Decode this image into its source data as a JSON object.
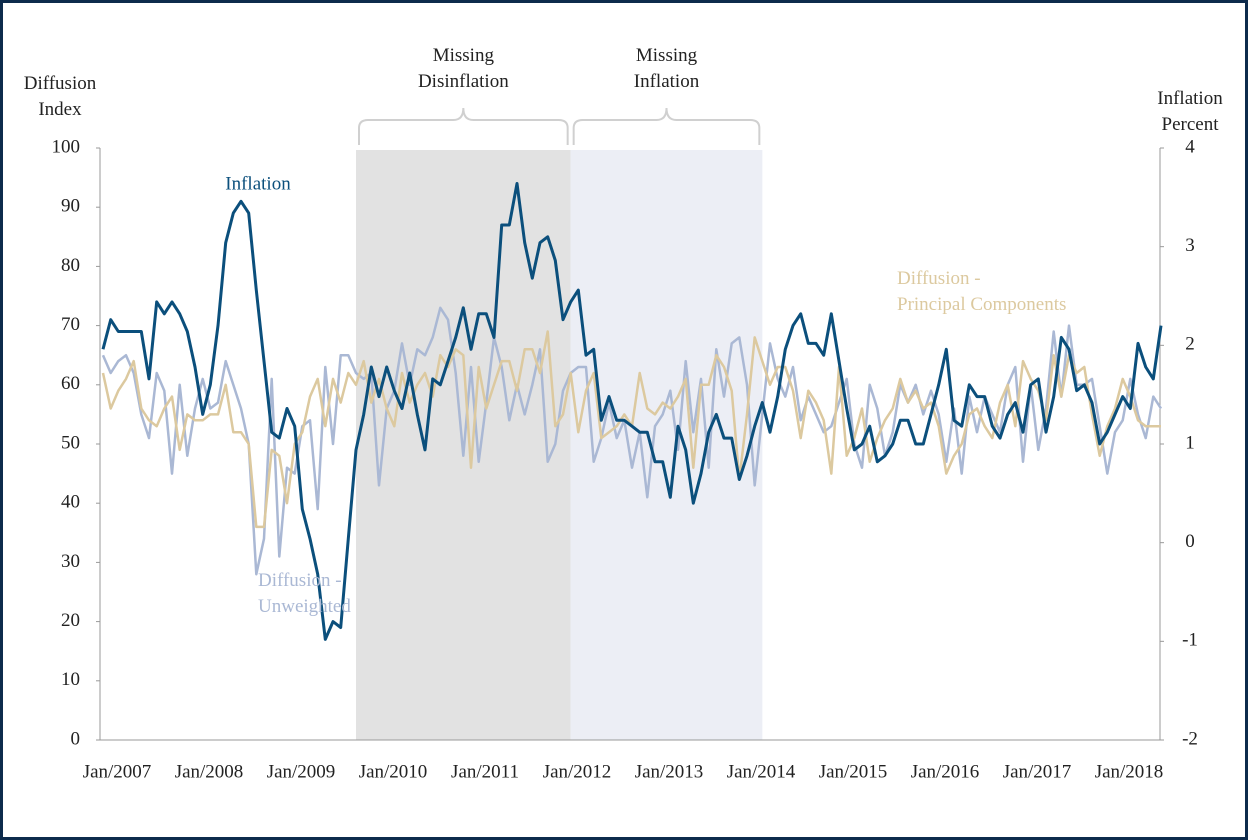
{
  "chart_data": {
    "type": "line",
    "y_label": "Diffusion Index",
    "y2_label": "Inflation Percent",
    "ylim": [
      0,
      100
    ],
    "yticks": [
      0,
      10,
      20,
      30,
      40,
      50,
      60,
      70,
      80,
      90,
      100
    ],
    "y2lim": [
      -2,
      4
    ],
    "y2ticks": [
      -2,
      -1,
      0,
      1,
      2,
      3,
      4
    ],
    "spans": [
      {
        "label": "Missing Disinflation",
        "start": 33,
        "end": 61,
        "color": "#e2e2e2"
      },
      {
        "label": "Missing Inflation",
        "start": 61,
        "end": 86,
        "color": "#eceef5"
      }
    ],
    "categories": [
      "Jan/2007",
      null,
      null,
      null,
      null,
      null,
      null,
      null,
      null,
      null,
      null,
      null,
      "Jan/2008",
      null,
      null,
      null,
      null,
      null,
      null,
      null,
      null,
      null,
      null,
      null,
      "Jan/2009",
      null,
      null,
      null,
      null,
      null,
      null,
      null,
      null,
      null,
      null,
      null,
      "Jan/2010",
      null,
      null,
      null,
      null,
      null,
      null,
      null,
      null,
      null,
      null,
      null,
      "Jan/2011",
      null,
      null,
      null,
      null,
      null,
      null,
      null,
      null,
      null,
      null,
      null,
      "Jan/2012",
      null,
      null,
      null,
      null,
      null,
      null,
      null,
      null,
      null,
      null,
      null,
      "Jan/2013",
      null,
      null,
      null,
      null,
      null,
      null,
      null,
      null,
      null,
      null,
      null,
      "Jan/2014",
      null,
      null,
      null,
      null,
      null,
      null,
      null,
      null,
      null,
      null,
      null,
      "Jan/2015",
      null,
      null,
      null,
      null,
      null,
      null,
      null,
      null,
      null,
      null,
      null,
      "Jan/2016",
      null,
      null,
      null,
      null,
      null,
      null,
      null,
      null,
      null,
      null,
      null,
      "Jan/2017",
      null,
      null,
      null,
      null,
      null,
      null,
      null,
      null,
      null,
      null,
      null,
      "Jan/2018",
      null,
      null,
      null,
      null,
      null,
      null
    ],
    "series": [
      {
        "name": "Diffusion - Unweighted",
        "color": "#aab8d4",
        "values": [
          65,
          62,
          64,
          65,
          62,
          55,
          51,
          62,
          59,
          45,
          60,
          48,
          56,
          61,
          56,
          57,
          64,
          60,
          56,
          50,
          28,
          34,
          61,
          31,
          46,
          45,
          53,
          54,
          39,
          63,
          50,
          65,
          65,
          62,
          61,
          62,
          43,
          56,
          59,
          67,
          60,
          66,
          65,
          68,
          73,
          71,
          62,
          48,
          63,
          47,
          57,
          68,
          63,
          54,
          60,
          55,
          60,
          66,
          47,
          50,
          59,
          62,
          63,
          63,
          47,
          51,
          57,
          51,
          54,
          46,
          52,
          41,
          53,
          55,
          59,
          49,
          64,
          52,
          61,
          46,
          66,
          58,
          67,
          68,
          60,
          43,
          55,
          67,
          61,
          58,
          63,
          54,
          58,
          55,
          52,
          53,
          57,
          61,
          50,
          46,
          60,
          56,
          48,
          52,
          60,
          57,
          60,
          55,
          59,
          55,
          47,
          56,
          45,
          58,
          52,
          58,
          55,
          52,
          60,
          63,
          47,
          60,
          49,
          56,
          69,
          58,
          70,
          60,
          60,
          61,
          53,
          45,
          52,
          54,
          61,
          55,
          51,
          58,
          56
        ]
      },
      {
        "name": "Diffusion - Principal Components",
        "color": "#dcc99f",
        "values": [
          62,
          56,
          59,
          61,
          64,
          56,
          54,
          53,
          56,
          58,
          49,
          55,
          54,
          54,
          55,
          55,
          60,
          52,
          52,
          50,
          36,
          36,
          49,
          48,
          40,
          50,
          52,
          58,
          61,
          53,
          61,
          57,
          62,
          60,
          64,
          57,
          61,
          56,
          53,
          62,
          57,
          60,
          62,
          58,
          65,
          63,
          66,
          65,
          46,
          63,
          56,
          60,
          64,
          64,
          59,
          66,
          66,
          62,
          69,
          53,
          55,
          62,
          52,
          59,
          62,
          51,
          52,
          53,
          55,
          53,
          62,
          56,
          55,
          57,
          56,
          58,
          61,
          46,
          60,
          60,
          65,
          63,
          59,
          44,
          55,
          68,
          64,
          60,
          63,
          63,
          59,
          51,
          59,
          57,
          54,
          45,
          63,
          48,
          51,
          56,
          47,
          51,
          54,
          56,
          61,
          57,
          59,
          56,
          57,
          53,
          45,
          48,
          50,
          55,
          56,
          53,
          51,
          57,
          60,
          53,
          64,
          61,
          59,
          54,
          65,
          58,
          65,
          62,
          63,
          55,
          48,
          53,
          56,
          61,
          58,
          54,
          53,
          53,
          53
        ]
      },
      {
        "name": "Inflation",
        "color": "#0b4f7c",
        "axis": "y2",
        "values": [
          1.96,
          2.26,
          2.14,
          2.14,
          2.14,
          2.14,
          1.66,
          2.44,
          2.32,
          2.44,
          2.32,
          2.14,
          1.78,
          1.3,
          1.6,
          2.2,
          3.04,
          3.34,
          3.46,
          3.34,
          2.56,
          1.84,
          1.12,
          1.06,
          1.36,
          1.18,
          0.34,
          0.04,
          -0.32,
          -0.98,
          -0.8,
          -0.86,
          0.04,
          0.94,
          1.3,
          1.78,
          1.48,
          1.78,
          1.54,
          1.36,
          1.72,
          1.3,
          0.94,
          1.66,
          1.6,
          1.84,
          2.08,
          2.38,
          1.96,
          2.32,
          2.32,
          2.08,
          3.22,
          3.22,
          3.64,
          3.04,
          2.68,
          3.04,
          3.1,
          2.86,
          2.26,
          2.44,
          2.56,
          1.9,
          1.96,
          1.24,
          1.48,
          1.24,
          1.24,
          1.18,
          1.12,
          1.12,
          0.82,
          0.82,
          0.46,
          1.18,
          0.94,
          0.4,
          0.7,
          1.12,
          1.3,
          1.06,
          1.06,
          0.64,
          0.88,
          1.18,
          1.42,
          1.12,
          1.48,
          1.96,
          2.2,
          2.32,
          2.02,
          2.02,
          1.9,
          2.32,
          1.84,
          1.36,
          0.94,
          1,
          1.18,
          0.82,
          0.88,
          1,
          1.24,
          1.24,
          1,
          1,
          1.3,
          1.6,
          1.96,
          1.24,
          1.18,
          1.6,
          1.48,
          1.48,
          1.18,
          1.06,
          1.3,
          1.42,
          1.12,
          1.6,
          1.66,
          1.12,
          1.48,
          2.08,
          1.96,
          1.54,
          1.6,
          1.42,
          1,
          1.12,
          1.3,
          1.48,
          1.36,
          2.02,
          1.78,
          1.66,
          2.2
        ]
      }
    ]
  }
}
